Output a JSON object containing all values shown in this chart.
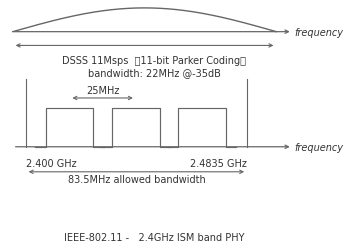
{
  "background_color": "#ffffff",
  "text_color": "#333333",
  "line_color": "#666666",
  "top_arc_label": "DSSS 11Msps  （11-bit Parker Coding）",
  "top_arc_label2": "bandwidth: 22MHz @-35dB",
  "freq_label": "frequency",
  "ghz_left": "2.400 GHz",
  "ghz_right": "2.4835 GHz",
  "bandwidth_label": "83.5MHz allowed bandwidth",
  "channel_spacing": "25MHz",
  "bottom_label": "IEEE-802.11 -   2.4GHz ISM band PHY",
  "fig_width": 3.5,
  "fig_height": 2.53,
  "dpi": 100
}
